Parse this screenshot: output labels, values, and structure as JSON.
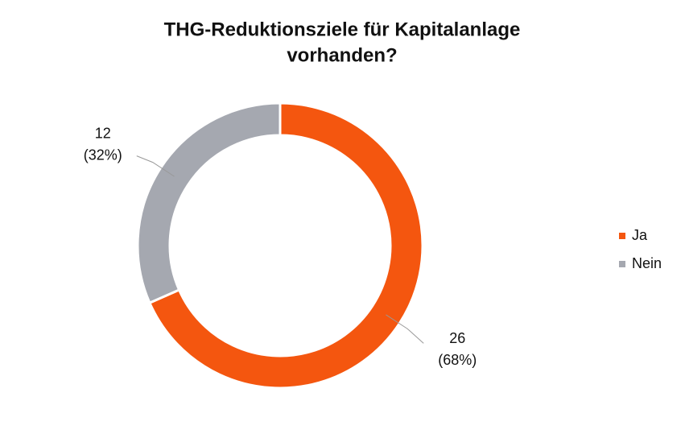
{
  "chart_data": {
    "type": "donut",
    "title": "THG-Reduktionsziele für Kapitalanlage",
    "subtitle": "vorhanden?",
    "categories": [
      "Ja",
      "Nein"
    ],
    "values": [
      26,
      12
    ],
    "percent_labels": [
      "(68%)",
      "(32%)"
    ],
    "colors": [
      "#f4560f",
      "#a5a8b0"
    ],
    "legend": "right"
  }
}
